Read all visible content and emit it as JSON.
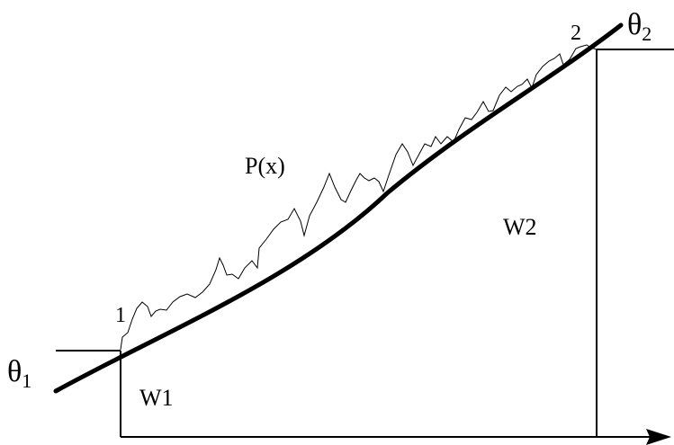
{
  "labels": {
    "theta1_symbol": "θ",
    "theta1_subscript": "1",
    "theta2_symbol": "θ",
    "theta2_subscript": "2",
    "point1": "1",
    "point2": "2",
    "px": "P(x)",
    "w1": "W1",
    "w2": "W2"
  },
  "colors": {
    "line": "#000000",
    "background": "#ffffff"
  }
}
